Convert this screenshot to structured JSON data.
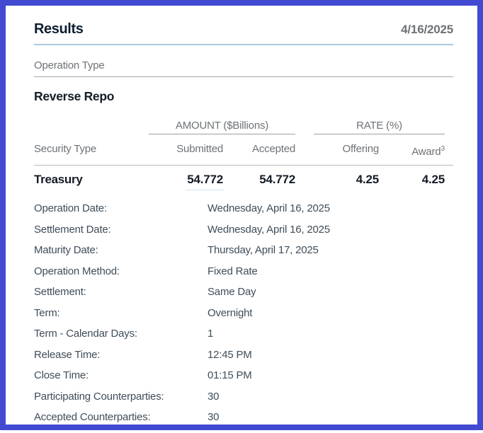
{
  "colors": {
    "frame_border": "#424ad1",
    "title_text": "#0e1e30",
    "muted_text": "#6e7276",
    "dark_text": "#141c26",
    "detail_text": "#3f4d59",
    "title_rule_blue": "#a7c9db",
    "thin_rule_gray": "#a2a6a9",
    "group_header_rule": "#9b9fa2",
    "table_header_rule": "#b6b9bb",
    "submitted_value_underline": "#d5e5ee"
  },
  "header": {
    "title": "Results",
    "date": "4/16/2025"
  },
  "operation_type": {
    "label": "Operation Type",
    "value": "Reverse Repo"
  },
  "results_table": {
    "group_headers": {
      "amount": "AMOUNT ($Billions)",
      "rate": "RATE (%)"
    },
    "columns": {
      "security_type": "Security Type",
      "submitted": "Submitted",
      "accepted": "Accepted",
      "offering": "Offering",
      "award": "Award",
      "award_footnote": "3"
    },
    "rows": [
      {
        "security_type": "Treasury",
        "submitted": "54.772",
        "accepted": "54.772",
        "offering": "4.25",
        "award": "4.25"
      }
    ]
  },
  "details": {
    "items": [
      {
        "label": "Operation Date:",
        "value": "Wednesday, April 16, 2025"
      },
      {
        "label": "Settlement Date:",
        "value": "Wednesday, April 16, 2025"
      },
      {
        "label": "Maturity Date:",
        "value": "Thursday, April 17, 2025"
      },
      {
        "label": "Operation Method:",
        "value": "Fixed Rate"
      },
      {
        "label": "Settlement:",
        "value": "Same Day"
      },
      {
        "label": "Term:",
        "value": "Overnight"
      },
      {
        "label": "Term - Calendar Days:",
        "value": "1"
      },
      {
        "label": "Release Time:",
        "value": "12:45 PM"
      },
      {
        "label": "Close Time:",
        "value": "01:15 PM"
      },
      {
        "label": "Participating Counterparties:",
        "value": "30"
      },
      {
        "label": "Accepted Counterparties:",
        "value": "30"
      }
    ]
  }
}
